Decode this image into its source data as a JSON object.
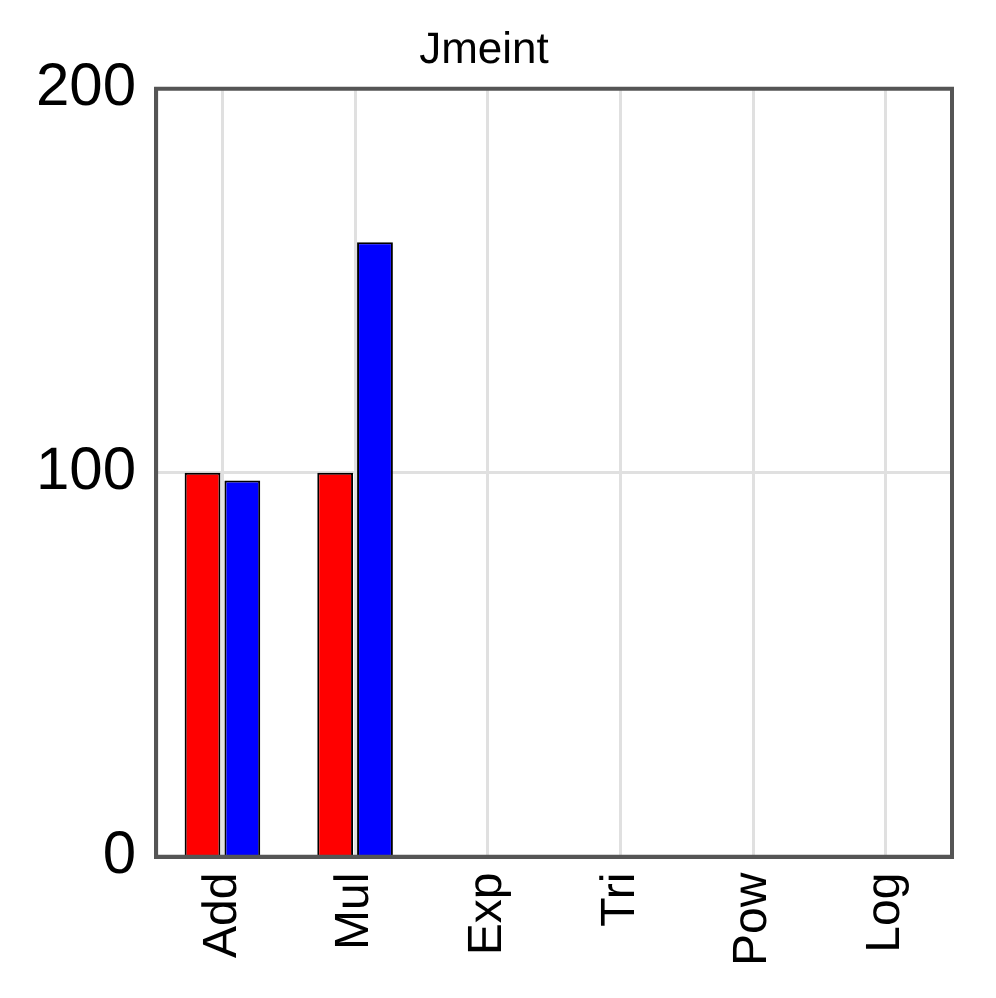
{
  "chart_data": {
    "type": "bar",
    "title": "Jmeint",
    "categories": [
      "Add",
      "Mul",
      "Exp",
      "Tri",
      "Pow",
      "Log"
    ],
    "series": [
      {
        "color": "#ff0000",
        "values": [
          100,
          100,
          null,
          null,
          null,
          null
        ]
      },
      {
        "color": "#0000ff",
        "values": [
          98,
          160,
          null,
          null,
          null,
          null
        ]
      }
    ],
    "ylim": [
      0,
      200
    ],
    "yticks": [
      0,
      100,
      200
    ],
    "grid": true,
    "legend": false
  }
}
